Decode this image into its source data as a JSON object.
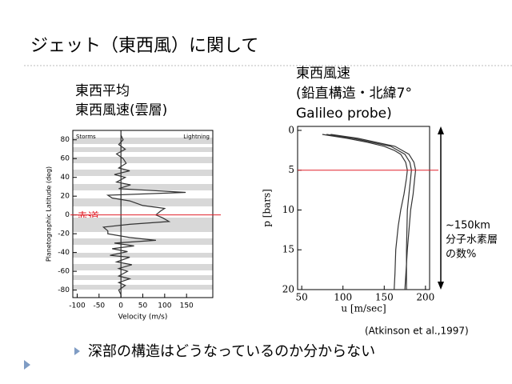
{
  "slide": {
    "title": "ジェット（東西風）に関して",
    "left_caption": [
      "東西平均",
      "東西風速(雲層)"
    ],
    "right_caption": [
      "東西風速",
      "(鉛直構造・北緯7°",
      "Galileo probe)"
    ],
    "equator_label": "赤道",
    "annotation": [
      "~150km",
      "分子水素層",
      "の数%"
    ],
    "citation": "(Atkinson et al.,1997)",
    "bullet": "深部の構造はどうなっているのか分からない"
  },
  "chart_data": [
    {
      "type": "line",
      "xlabel": "Velocity (m/s)",
      "ylabel": "Planetographic Latitude (deg)",
      "corner_labels": [
        "Storms",
        "Lightning"
      ],
      "xlim": [
        -110,
        210
      ],
      "ylim": [
        -88,
        90
      ],
      "xticks": [
        -100,
        -50,
        0,
        50,
        100,
        150
      ],
      "yticks": [
        80,
        60,
        40,
        20,
        0,
        -20,
        -40,
        -60,
        -80
      ],
      "hline": 0,
      "hline_color": "#e0202a",
      "series": [
        {
          "color": "#333333",
          "y": [
            85,
            80,
            75,
            70,
            65,
            60,
            55,
            50,
            47,
            43,
            40,
            35,
            32,
            28,
            24,
            21,
            18,
            15,
            10,
            7,
            4,
            0,
            -3,
            -7,
            -10,
            -13,
            -17,
            -20,
            -24,
            -27,
            -30,
            -33,
            -36,
            -39,
            -43,
            -45,
            -50,
            -53,
            -57,
            -60,
            -65,
            -68,
            -72,
            -75,
            -80,
            -85
          ],
          "x": [
            0,
            5,
            -5,
            10,
            -10,
            5,
            12,
            -5,
            20,
            -15,
            10,
            -10,
            22,
            -5,
            148,
            -30,
            -20,
            20,
            50,
            100,
            90,
            80,
            95,
            110,
            20,
            -40,
            -30,
            -30,
            20,
            80,
            -15,
            30,
            -20,
            15,
            -25,
            20,
            -10,
            25,
            -5,
            15,
            -5,
            20,
            -5,
            10,
            -5,
            0
          ]
        }
      ]
    },
    {
      "type": "line",
      "xlabel": "u [m/sec]",
      "ylabel": "p [bars]",
      "xlim": [
        45,
        205
      ],
      "ylim": [
        -0.5,
        20
      ],
      "y_inverted": true,
      "xticks": [
        50,
        100,
        150,
        200
      ],
      "yticks": [
        0,
        5,
        10,
        15,
        20
      ],
      "hline": 5,
      "hline_color": "#e0202a",
      "series": [
        {
          "color": "#333333",
          "y": [
            0.5,
            1,
            1.5,
            2,
            2.5,
            3,
            4,
            5,
            6,
            8,
            10,
            12,
            15,
            18,
            20
          ],
          "x": [
            75,
            105,
            130,
            150,
            162,
            170,
            176,
            178,
            177,
            174,
            170,
            167,
            164,
            163,
            162
          ]
        },
        {
          "color": "#333333",
          "y": [
            0.5,
            1,
            2,
            3,
            4,
            5,
            6,
            8,
            10,
            15,
            20
          ],
          "x": [
            80,
            112,
            158,
            175,
            181,
            183,
            182,
            180,
            178,
            177,
            177
          ]
        },
        {
          "color": "#333333",
          "y": [
            0.5,
            1,
            2,
            3,
            4,
            5,
            6,
            8,
            10,
            15,
            20
          ],
          "x": [
            85,
            118,
            163,
            180,
            186,
            188,
            187,
            185,
            182,
            178,
            175
          ]
        }
      ]
    }
  ]
}
